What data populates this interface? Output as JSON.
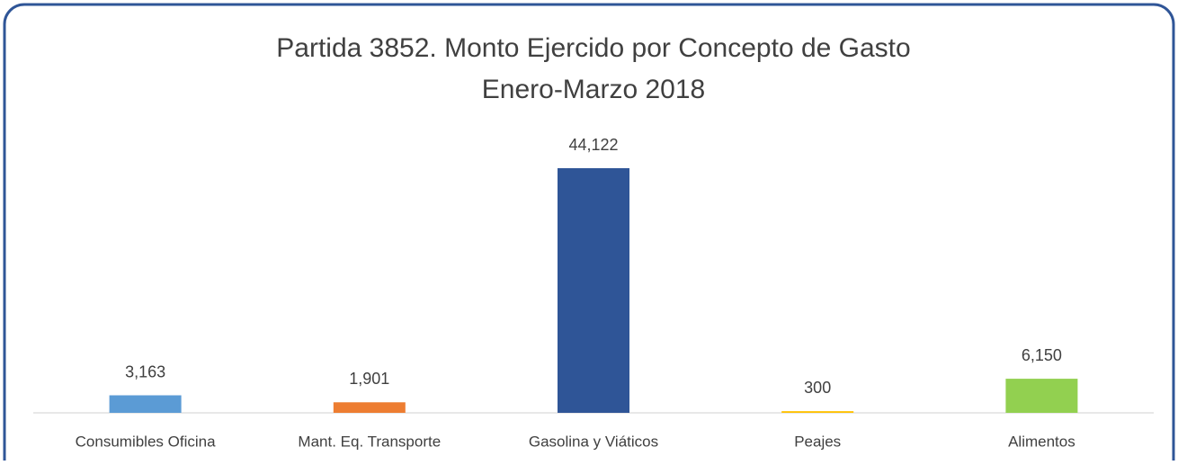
{
  "chart_data": {
    "type": "bar",
    "title": "Partida 3852. Monto Ejercido por Concepto de Gasto",
    "subtitle": "Enero-Marzo 2018",
    "categories": [
      "Consumibles Oficina",
      "Mant. Eq. Transporte",
      "Gasolina y Viáticos",
      "Peajes",
      "Alimentos"
    ],
    "values": [
      3163,
      1901,
      44122,
      300,
      6150
    ],
    "value_labels": [
      "3,163",
      "1,901",
      "44,122",
      "300",
      "6,150"
    ],
    "colors": [
      "#5b9bd5",
      "#ed7d31",
      "#2f5597",
      "#ffc000",
      "#92d050"
    ]
  }
}
